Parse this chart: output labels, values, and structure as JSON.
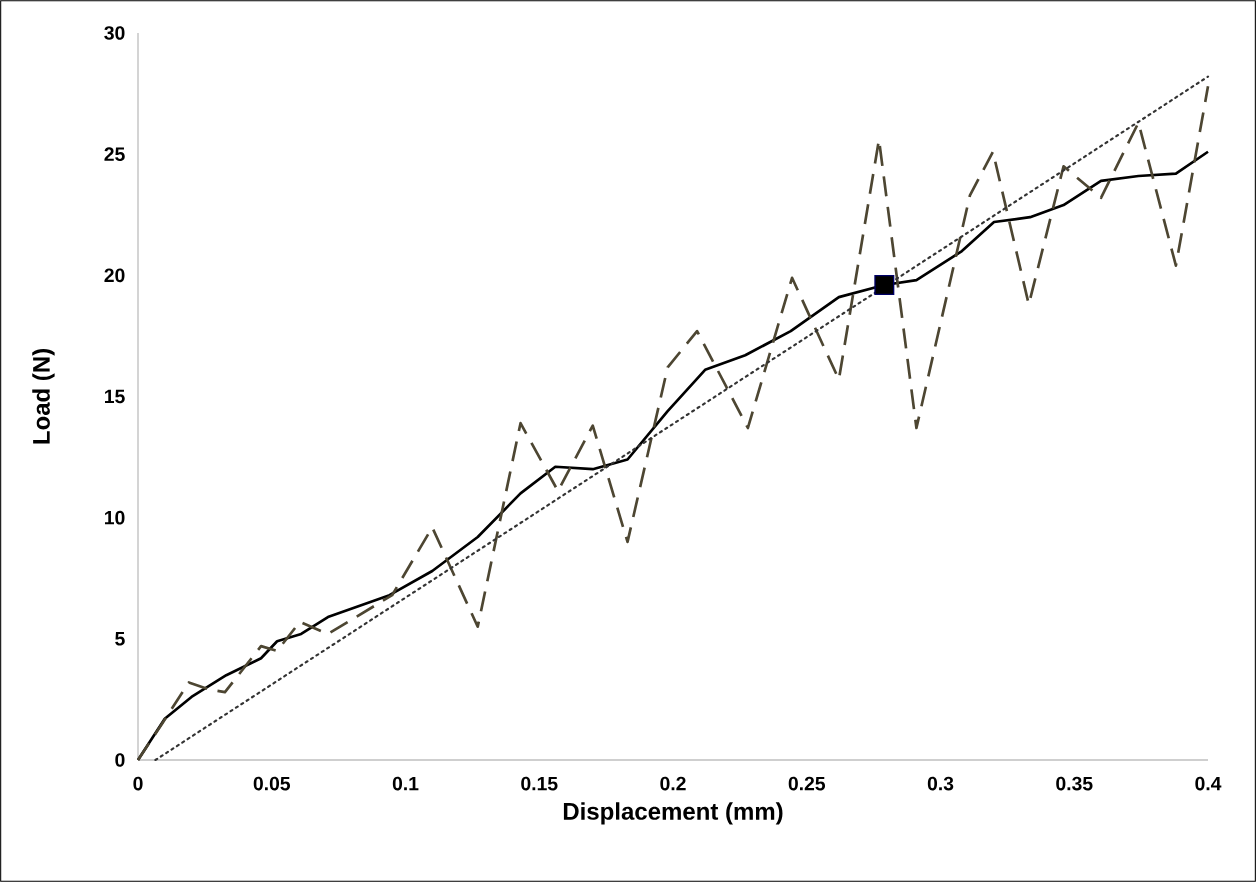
{
  "chart_data": {
    "type": "line",
    "xlabel": "Displacement (mm)",
    "ylabel": "Load (N)",
    "xlim": [
      0,
      0.4
    ],
    "ylim": [
      0,
      30
    ],
    "xticks": [
      0,
      0.05,
      0.1,
      0.15,
      0.2,
      0.25,
      0.3,
      0.35,
      0.4
    ],
    "yticks": [
      0,
      5,
      10,
      15,
      20,
      25,
      30
    ],
    "series": [
      {
        "color": "#000000",
        "line_style": "solid",
        "x": [
          0,
          0.01,
          0.02,
          0.033,
          0.046,
          0.052,
          0.061,
          0.071,
          0.094,
          0.11,
          0.127,
          0.143,
          0.156,
          0.17,
          0.183,
          0.198,
          0.212,
          0.227,
          0.244,
          0.262,
          0.279,
          0.291,
          0.308,
          0.32,
          0.3335,
          0.346,
          0.36,
          0.374,
          0.388,
          0.4
        ],
        "values": [
          0,
          1.7,
          2.6,
          3.5,
          4.2,
          4.9,
          5.2,
          5.9,
          6.8,
          7.8,
          9.2,
          11.0,
          12.1,
          12.0,
          12.4,
          14.4,
          16.1,
          16.7,
          17.7,
          19.1,
          19.6,
          19.8,
          21.0,
          22.2,
          22.4,
          22.9,
          23.9,
          24.1,
          24.2,
          25.1
        ]
      },
      {
        "color": "#4d4632",
        "line_style": "dashed",
        "x": [
          0,
          0.009,
          0.019,
          0.027,
          0.0325,
          0.046,
          0.052,
          0.0605,
          0.071,
          0.095,
          0.11,
          0.127,
          0.143,
          0.157,
          0.17,
          0.183,
          0.198,
          0.209,
          0.228,
          0.2445,
          0.262,
          0.277,
          0.291,
          0.311,
          0.3196,
          0.333,
          0.346,
          0.36,
          0.374,
          0.388,
          0.4
        ],
        "values": [
          0,
          1.5,
          3.2,
          2.9,
          2.8,
          4.7,
          4.5,
          5.7,
          5.2,
          6.8,
          9.6,
          5.5,
          13.9,
          11.1,
          13.8,
          9.0,
          16.2,
          17.7,
          13.7,
          19.9,
          15.7,
          25.6,
          13.7,
          23.3,
          25.1,
          18.8,
          24.5,
          23.2,
          26.3,
          20.4,
          27.8
        ]
      },
      {
        "color": "#333333",
        "line_style": "dotted",
        "x": [
          0.0065,
          0.4
        ],
        "values": [
          0,
          28.2
        ]
      },
      {
        "type": "scatter",
        "color": "#000000",
        "marker": "square",
        "x": [
          0.279
        ],
        "values": [
          19.6
        ]
      }
    ]
  }
}
